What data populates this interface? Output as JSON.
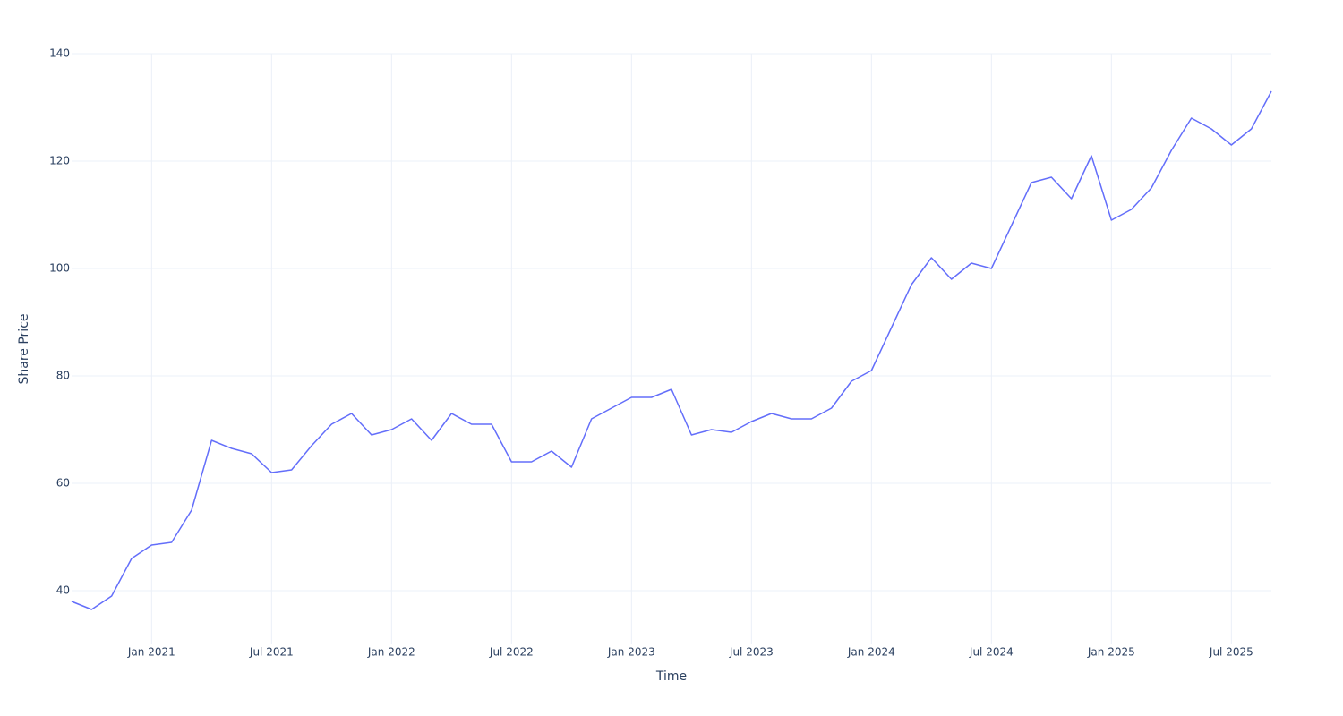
{
  "chart_data": {
    "type": "line",
    "x_label": "Time",
    "y_label": "Share Price",
    "x": [
      "2020-09",
      "2020-10",
      "2020-11",
      "2020-12",
      "2021-01",
      "2021-02",
      "2021-03",
      "2021-04",
      "2021-05",
      "2021-06",
      "2021-07",
      "2021-08",
      "2021-09",
      "2021-10",
      "2021-11",
      "2021-12",
      "2022-01",
      "2022-02",
      "2022-03",
      "2022-04",
      "2022-05",
      "2022-06",
      "2022-07",
      "2022-08",
      "2022-09",
      "2022-10",
      "2022-11",
      "2022-12",
      "2023-01",
      "2023-02",
      "2023-03",
      "2023-04",
      "2023-05",
      "2023-06",
      "2023-07",
      "2023-08",
      "2023-09",
      "2023-10",
      "2023-11",
      "2023-12",
      "2024-01",
      "2024-02",
      "2024-03",
      "2024-04",
      "2024-05",
      "2024-06",
      "2024-07",
      "2024-08",
      "2024-09",
      "2024-10",
      "2024-11",
      "2024-12",
      "2025-01",
      "2025-02",
      "2025-03",
      "2025-04",
      "2025-05",
      "2025-06",
      "2025-07",
      "2025-08",
      "2025-09"
    ],
    "series": [
      {
        "name": "Share Price",
        "color": "#636efa",
        "values": [
          38,
          36.5,
          39,
          46,
          48.5,
          49,
          55,
          68,
          66.5,
          65.5,
          62,
          62.5,
          67,
          71,
          73,
          69,
          70,
          72,
          68,
          73,
          71,
          71,
          64,
          64,
          66,
          63,
          72,
          74,
          76,
          76,
          77.5,
          69,
          70,
          69.5,
          71.5,
          73,
          72,
          72,
          74,
          79,
          81,
          89,
          97,
          102,
          98,
          101,
          100,
          108,
          116,
          117,
          113,
          121,
          109,
          111,
          115,
          122,
          128,
          126,
          123,
          126,
          133
        ]
      }
    ],
    "xlim": [
      "2020-09",
      "2025-09"
    ],
    "xticks": [
      {
        "value": "2021-01",
        "label": "Jan 2021"
      },
      {
        "value": "2021-07",
        "label": "Jul 2021"
      },
      {
        "value": "2022-01",
        "label": "Jan 2022"
      },
      {
        "value": "2022-07",
        "label": "Jul 2022"
      },
      {
        "value": "2023-01",
        "label": "Jan 2023"
      },
      {
        "value": "2023-07",
        "label": "Jul 2023"
      },
      {
        "value": "2024-01",
        "label": "Jan 2024"
      },
      {
        "value": "2024-07",
        "label": "Jul 2024"
      },
      {
        "value": "2025-01",
        "label": "Jan 2025"
      },
      {
        "value": "2025-07",
        "label": "Jul 2025"
      }
    ],
    "ylim": [
      30,
      140
    ],
    "yticks": [
      40,
      60,
      80,
      100,
      120,
      140
    ],
    "grid": true
  }
}
